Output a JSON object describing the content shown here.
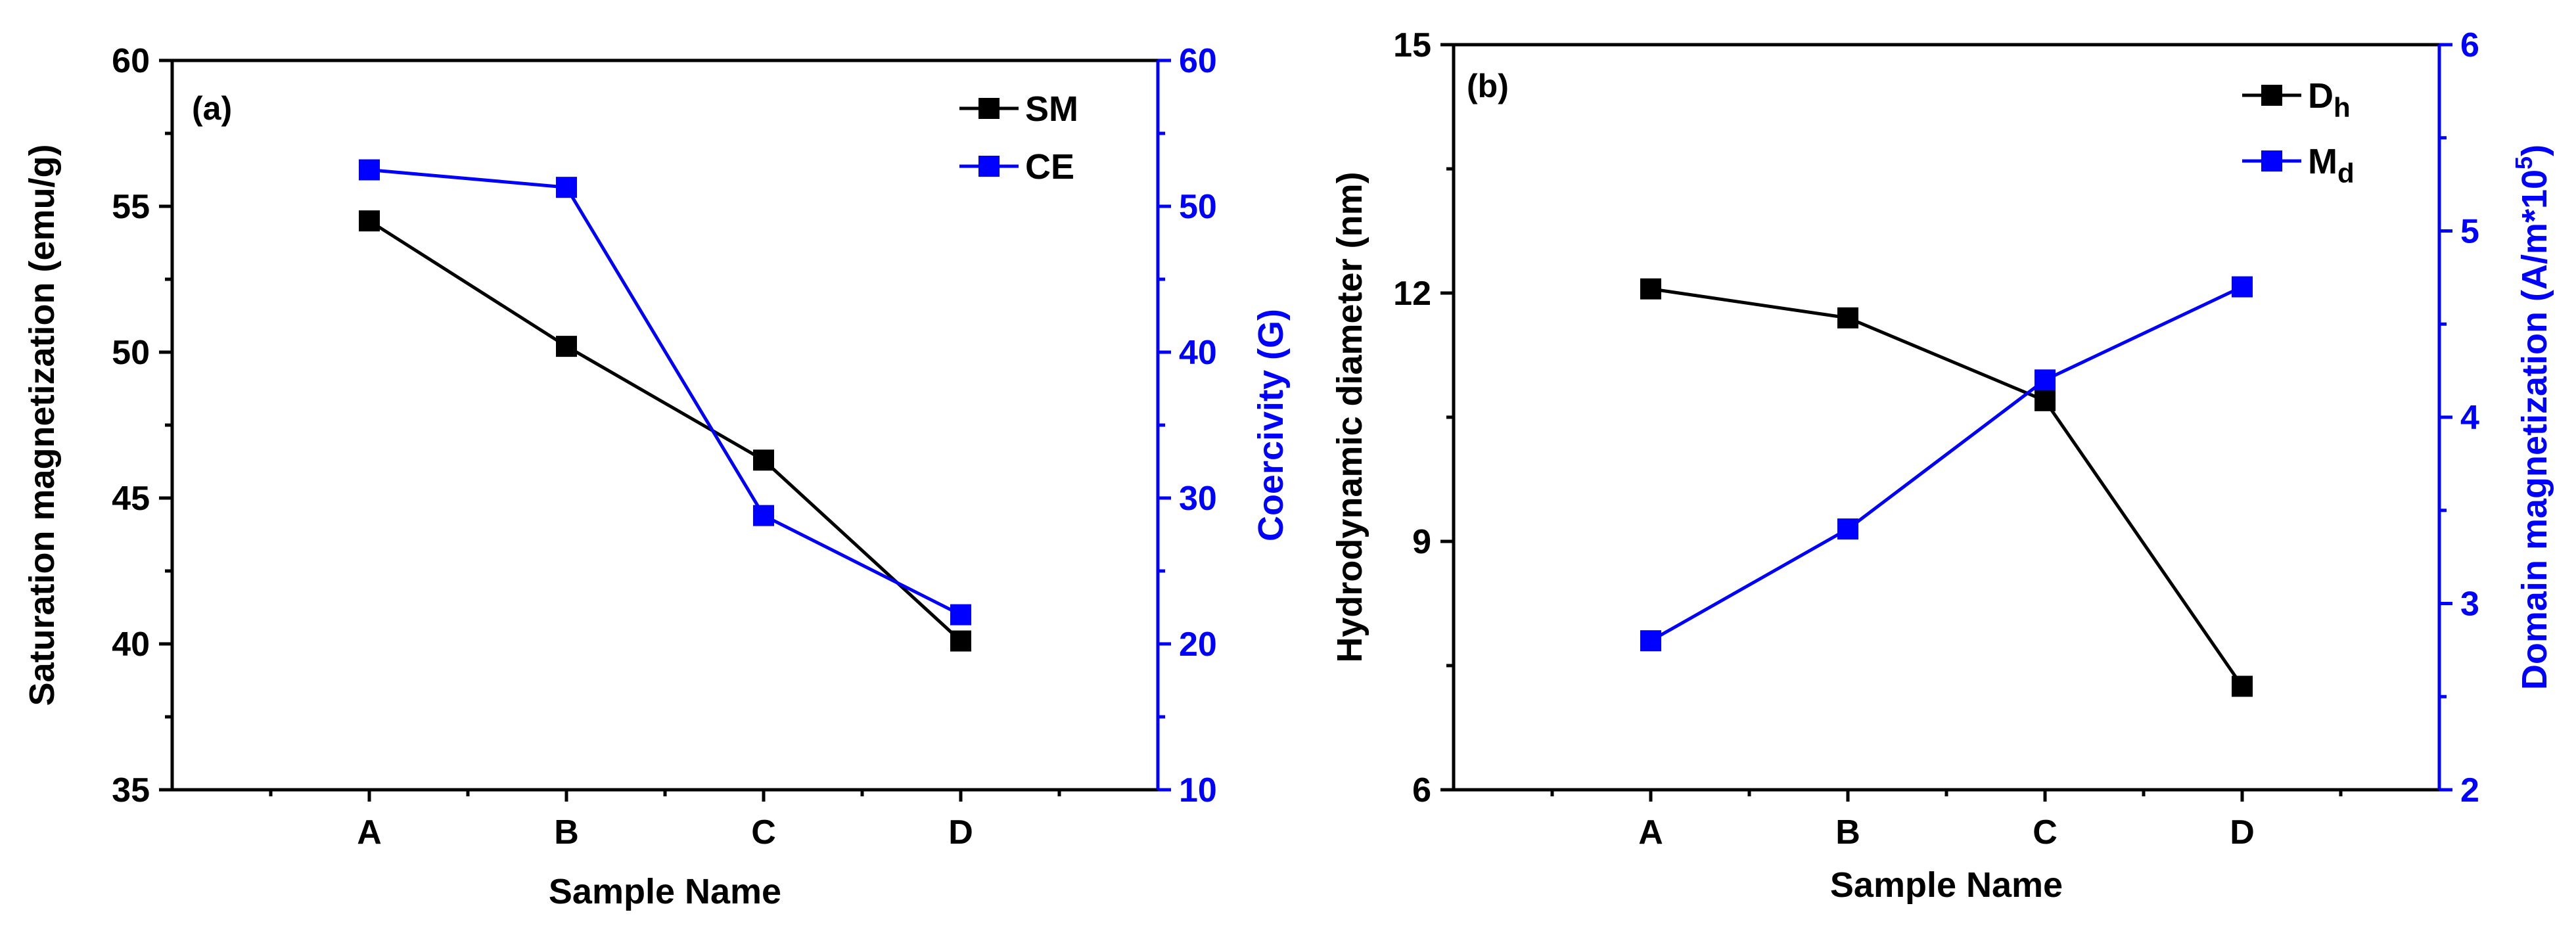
{
  "chart_data": [
    {
      "type": "line",
      "panel_label": "(a)",
      "xlabel": "Sample Name",
      "categories": [
        "A",
        "B",
        "C",
        "D"
      ],
      "left_axis": {
        "label": "Saturation magnetization (emu/g)",
        "range": [
          35,
          60
        ],
        "ticks": [
          35,
          40,
          45,
          50,
          55,
          60
        ],
        "color": "#000000"
      },
      "right_axis": {
        "label": "Coercivity (G)",
        "range": [
          10,
          60
        ],
        "ticks": [
          10,
          20,
          30,
          40,
          50,
          60
        ],
        "color": "#0000ff"
      },
      "series": [
        {
          "name": "SM",
          "axis": "left",
          "color": "#000000",
          "values": [
            54.5,
            50.2,
            46.3,
            40.1
          ]
        },
        {
          "name": "CE",
          "axis": "right",
          "color": "#0000ff",
          "values": [
            52.5,
            51.3,
            28.8,
            22.0
          ]
        }
      ],
      "legend": {
        "position": "top-right",
        "items": [
          {
            "name": "SM",
            "label": "SM"
          },
          {
            "name": "CE",
            "label": "CE"
          }
        ]
      }
    },
    {
      "type": "line",
      "panel_label": "(b)",
      "xlabel": "Sample Name",
      "categories": [
        "A",
        "B",
        "C",
        "D"
      ],
      "left_axis": {
        "label": "Hydrodynamic diameter (nm)",
        "range": [
          6,
          15
        ],
        "ticks": [
          6,
          9,
          12,
          15
        ],
        "color": "#000000"
      },
      "right_axis": {
        "label": "Domain magnetization (A/m*10",
        "label_superscript": "5",
        "label_suffix": ")",
        "range": [
          2,
          6
        ],
        "ticks": [
          2,
          3,
          4,
          5,
          6
        ],
        "color": "#0000ff"
      },
      "series": [
        {
          "name": "Dh",
          "axis": "left",
          "color": "#000000",
          "values": [
            12.05,
            11.7,
            10.7,
            7.25
          ]
        },
        {
          "name": "Md",
          "axis": "right",
          "color": "#0000ff",
          "values": [
            2.8,
            3.4,
            4.2,
            4.7
          ]
        }
      ],
      "legend": {
        "position": "top-right",
        "items": [
          {
            "name": "Dh",
            "label": "D",
            "subscript": "h"
          },
          {
            "name": "Md",
            "label": "M",
            "subscript": "d"
          }
        ]
      }
    }
  ]
}
